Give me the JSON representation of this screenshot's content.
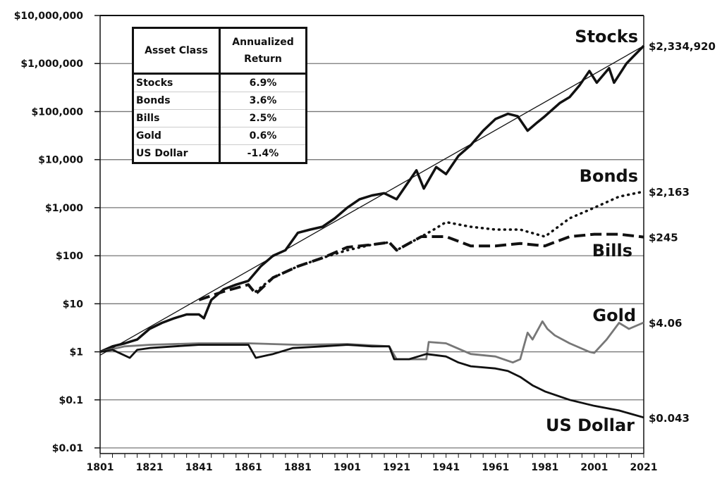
{
  "chart_data": {
    "type": "line",
    "yscale": "log",
    "ylim": [
      0.01,
      10000000
    ],
    "xlim": [
      1801,
      2021
    ],
    "grid": true,
    "y_ticks": [
      {
        "value": 10000000,
        "label": "$10,000,000"
      },
      {
        "value": 1000000,
        "label": "$1,000,000"
      },
      {
        "value": 100000,
        "label": "$100,000"
      },
      {
        "value": 10000,
        "label": "$10,000"
      },
      {
        "value": 1000,
        "label": "$1,000"
      },
      {
        "value": 100,
        "label": "$100"
      },
      {
        "value": 10,
        "label": "$10"
      },
      {
        "value": 1,
        "label": "$1"
      },
      {
        "value": 0.1,
        "label": "$0.1"
      },
      {
        "value": 0.01,
        "label": "$0.01"
      }
    ],
    "x_ticks": [
      "1801",
      "1821",
      "1841",
      "1861",
      "1881",
      "1901",
      "1921",
      "1941",
      "1961",
      "1981",
      "2001",
      "2021"
    ],
    "series": [
      {
        "name": "Stocks",
        "style": "solid-thick",
        "color": "#111111",
        "end_label": "$2,334,920",
        "x": [
          1801,
          1806,
          1811,
          1816,
          1821,
          1826,
          1831,
          1836,
          1841,
          1843,
          1846,
          1851,
          1856,
          1861,
          1866,
          1871,
          1876,
          1881,
          1886,
          1891,
          1896,
          1901,
          1906,
          1911,
          1916,
          1921,
          1925,
          1929,
          1932,
          1937,
          1941,
          1946,
          1951,
          1956,
          1961,
          1966,
          1970,
          1974,
          1978,
          1981,
          1987,
          1991,
          1995,
          1999,
          2002,
          2007,
          2009,
          2014,
          2021
        ],
        "y": [
          1,
          1.3,
          1.5,
          1.8,
          3,
          4,
          5,
          6,
          6,
          5,
          12,
          20,
          25,
          30,
          60,
          100,
          130,
          300,
          350,
          400,
          600,
          1000,
          1500,
          1800,
          2000,
          1500,
          3000,
          6000,
          2500,
          7000,
          5000,
          12000,
          20000,
          40000,
          70000,
          90000,
          80000,
          40000,
          60000,
          80000,
          150000,
          200000,
          350000,
          700000,
          400000,
          800000,
          400000,
          1000000,
          2334920
        ]
      },
      {
        "name": "Bonds",
        "style": "dotted",
        "color": "#111111",
        "end_label": "$2,163",
        "x": [
          1864,
          1871,
          1881,
          1891,
          1901,
          1911,
          1918,
          1921,
          1931,
          1936,
          1941,
          1951,
          1961,
          1971,
          1981,
          1991,
          2001,
          2011,
          2021
        ],
        "y": [
          18,
          35,
          60,
          90,
          130,
          170,
          190,
          130,
          250,
          350,
          500,
          400,
          350,
          350,
          250,
          600,
          1000,
          1700,
          2163
        ]
      },
      {
        "name": "Bills",
        "style": "dashed",
        "color": "#111111",
        "end_label": "$245",
        "x": [
          1841,
          1851,
          1861,
          1864,
          1871,
          1881,
          1891,
          1901,
          1911,
          1918,
          1921,
          1931,
          1941,
          1951,
          1961,
          1971,
          1981,
          1991,
          2001,
          2011,
          2021
        ],
        "y": [
          12,
          18,
          25,
          16,
          35,
          60,
          90,
          150,
          170,
          190,
          130,
          250,
          250,
          160,
          160,
          180,
          160,
          250,
          280,
          280,
          245
        ]
      },
      {
        "name": "Gold",
        "style": "solid",
        "color": "#777777",
        "end_label": "$4.06",
        "x": [
          1801,
          1811,
          1821,
          1841,
          1861,
          1881,
          1901,
          1918,
          1921,
          1933,
          1934,
          1941,
          1951,
          1961,
          1968,
          1971,
          1974,
          1976,
          1980,
          1982,
          1985,
          1991,
          1999,
          2001,
          2006,
          2011,
          2015,
          2021
        ],
        "y": [
          1,
          1.3,
          1.4,
          1.5,
          1.5,
          1.4,
          1.45,
          1.3,
          0.7,
          0.7,
          1.6,
          1.5,
          0.9,
          0.8,
          0.6,
          0.7,
          2.5,
          1.8,
          4.3,
          3,
          2.2,
          1.5,
          1.0,
          0.95,
          1.8,
          4,
          3,
          4.06
        ]
      },
      {
        "name": "US Dollar",
        "style": "solid",
        "color": "#111111",
        "end_label": "$0.043",
        "x": [
          1801,
          1806,
          1813,
          1816,
          1821,
          1831,
          1841,
          1851,
          1861,
          1864,
          1871,
          1879,
          1891,
          1901,
          1911,
          1918,
          1920,
          1926,
          1933,
          1941,
          1946,
          1951,
          1961,
          1966,
          1971,
          1976,
          1981,
          1991,
          2001,
          2011,
          2021
        ],
        "y": [
          1,
          1.1,
          0.75,
          1.1,
          1.2,
          1.3,
          1.4,
          1.4,
          1.4,
          0.75,
          0.9,
          1.2,
          1.3,
          1.4,
          1.3,
          1.3,
          0.7,
          0.7,
          0.9,
          0.8,
          0.6,
          0.5,
          0.45,
          0.4,
          0.3,
          0.2,
          0.15,
          0.1,
          0.075,
          0.06,
          0.043
        ]
      }
    ],
    "trendline": {
      "x": [
        1801,
        2021
      ],
      "y": [
        0.85,
        2334920
      ]
    },
    "table": {
      "headers": [
        "Asset Class",
        "Annualized Return"
      ],
      "rows": [
        [
          "Stocks",
          "6.9%"
        ],
        [
          "Bonds",
          "3.6%"
        ],
        [
          "Bills",
          "2.5%"
        ],
        [
          "Gold",
          "0.6%"
        ],
        [
          "US Dollar",
          "-1.4%"
        ]
      ]
    }
  }
}
